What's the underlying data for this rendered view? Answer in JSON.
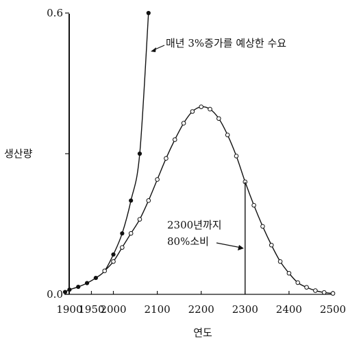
{
  "chart_data": {
    "type": "line",
    "title": "",
    "xlabel": "연도",
    "ylabel": "생산량",
    "xlim": [
      1890,
      2500
    ],
    "ylim": [
      0,
      0.6
    ],
    "x_ticks": [
      "1900",
      "1950",
      "2000",
      "2100",
      "2200",
      "2300",
      "2400",
      "2500"
    ],
    "x_tick_values": [
      1900,
      1950,
      2000,
      2100,
      2200,
      2300,
      2400,
      2500
    ],
    "y_ticks": [
      "0.0",
      "0.6"
    ],
    "y_tick_values": [
      0,
      0.6
    ],
    "series": [
      {
        "marker": "filled-circle",
        "x": [
          1890,
          1900,
          1920,
          1940,
          1960,
          1980,
          2000,
          2020,
          2040,
          2060,
          2080
        ],
        "y": [
          0.005,
          0.01,
          0.016,
          0.024,
          0.035,
          0.05,
          0.085,
          0.13,
          0.2,
          0.3,
          0.6
        ]
      },
      {
        "marker": "open-circle",
        "x": [
          1980,
          2000,
          2020,
          2040,
          2060,
          2080,
          2100,
          2120,
          2140,
          2160,
          2180,
          2200,
          2220,
          2240,
          2260,
          2280,
          2300,
          2320,
          2340,
          2360,
          2380,
          2400,
          2420,
          2440,
          2460,
          2480,
          2500
        ],
        "y": [
          0.05,
          0.07,
          0.1,
          0.13,
          0.16,
          0.2,
          0.245,
          0.29,
          0.33,
          0.365,
          0.39,
          0.4,
          0.395,
          0.375,
          0.34,
          0.295,
          0.24,
          0.19,
          0.145,
          0.105,
          0.07,
          0.045,
          0.025,
          0.015,
          0.008,
          0.004,
          0.002
        ]
      }
    ],
    "annotations": {
      "demand_label": "매년 3%증가를 예상한 수요",
      "depletion_line1": "2300년까지",
      "depletion_line2": "80%소비"
    }
  }
}
